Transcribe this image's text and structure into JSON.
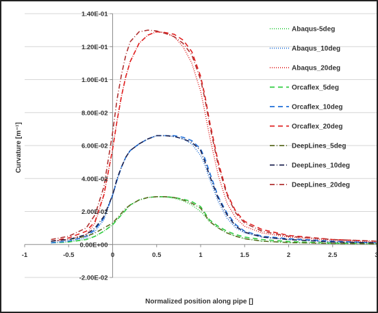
{
  "chart_data": {
    "type": "line",
    "title": "",
    "xlabel": "Normalized position along pipe []",
    "ylabel": "Curvature [m⁻¹]",
    "xlim": [
      -1,
      3
    ],
    "ylim": [
      -0.02,
      0.14
    ],
    "x_ticks": [
      -1,
      -0.5,
      0,
      0.5,
      1,
      1.5,
      2,
      2.5,
      3
    ],
    "x_tick_labels": [
      "-1",
      "-0.5",
      "0",
      "0.5",
      "1",
      "1.5",
      "2",
      "2.5",
      "3"
    ],
    "y_ticks": [
      -0.02,
      0,
      0.02,
      0.04,
      0.06,
      0.08,
      0.1,
      0.12,
      0.14
    ],
    "y_tick_labels": [
      "-2.00E-02",
      "0.00E+00",
      "2.00E-02",
      "4.00E-02",
      "6.00E-02",
      "8.00E-02",
      "1.00E-01",
      "1.20E-01",
      "1.40E-01"
    ],
    "grid": "horizontal",
    "legend_position": "right",
    "x": [
      -0.7,
      -0.5,
      -0.3,
      -0.2,
      -0.1,
      0,
      0.05,
      0.1,
      0.15,
      0.2,
      0.3,
      0.4,
      0.5,
      0.6,
      0.7,
      0.8,
      0.9,
      1.0,
      1.05,
      1.1,
      1.2,
      1.3,
      1.4,
      1.5,
      1.7,
      2.0,
      2.5,
      3.0
    ],
    "series": [
      {
        "name": "Abaqus-5deg",
        "color": "#2ecc40",
        "dash": "1,2",
        "values": [
          0.001,
          0.0015,
          0.003,
          0.005,
          0.008,
          0.012,
          0.015,
          0.018,
          0.021,
          0.024,
          0.027,
          0.0285,
          0.029,
          0.0288,
          0.028,
          0.0265,
          0.024,
          0.02,
          0.017,
          0.014,
          0.01,
          0.007,
          0.005,
          0.0035,
          0.002,
          0.0012,
          0.0006,
          0.0004
        ]
      },
      {
        "name": "Abaqus_10deg",
        "color": "#1f6fd8",
        "dash": "1,2",
        "values": [
          0.001,
          0.002,
          0.004,
          0.008,
          0.015,
          0.03,
          0.039,
          0.047,
          0.053,
          0.057,
          0.061,
          0.064,
          0.066,
          0.066,
          0.0655,
          0.064,
          0.061,
          0.054,
          0.048,
          0.04,
          0.026,
          0.016,
          0.01,
          0.007,
          0.0045,
          0.003,
          0.0015,
          0.001
        ]
      },
      {
        "name": "Abaqus_20deg",
        "color": "#e02020",
        "dash": "1,2",
        "values": [
          0.002,
          0.003,
          0.006,
          0.013,
          0.03,
          0.058,
          0.075,
          0.09,
          0.102,
          0.111,
          0.122,
          0.127,
          0.129,
          0.1285,
          0.126,
          0.12,
          0.11,
          0.093,
          0.08,
          0.066,
          0.042,
          0.025,
          0.016,
          0.011,
          0.007,
          0.0045,
          0.0025,
          0.0015
        ]
      },
      {
        "name": "Orcaflex_5deg",
        "color": "#2ecc40",
        "dash": "7,5",
        "values": [
          0.001,
          0.0015,
          0.003,
          0.005,
          0.008,
          0.012,
          0.015,
          0.018,
          0.021,
          0.024,
          0.027,
          0.0285,
          0.029,
          0.029,
          0.0285,
          0.0275,
          0.026,
          0.023,
          0.019,
          0.015,
          0.011,
          0.008,
          0.006,
          0.0045,
          0.003,
          0.0018,
          0.0008,
          0.0005
        ]
      },
      {
        "name": "Orcaflex_10deg",
        "color": "#1f6fd8",
        "dash": "7,5",
        "values": [
          0.001,
          0.002,
          0.005,
          0.009,
          0.016,
          0.03,
          0.039,
          0.047,
          0.053,
          0.057,
          0.061,
          0.064,
          0.066,
          0.066,
          0.066,
          0.065,
          0.063,
          0.058,
          0.052,
          0.044,
          0.029,
          0.019,
          0.012,
          0.008,
          0.005,
          0.0035,
          0.002,
          0.001
        ]
      },
      {
        "name": "Orcaflex_20deg",
        "color": "#e02020",
        "dash": "7,5",
        "values": [
          0.002,
          0.004,
          0.008,
          0.014,
          0.03,
          0.058,
          0.075,
          0.09,
          0.102,
          0.111,
          0.122,
          0.127,
          0.129,
          0.1285,
          0.1275,
          0.124,
          0.117,
          0.102,
          0.09,
          0.075,
          0.05,
          0.031,
          0.02,
          0.014,
          0.009,
          0.0055,
          0.003,
          0.002
        ]
      },
      {
        "name": "DeepLines_5deg",
        "color": "#5a6b20",
        "dash": "7,3,1,3",
        "values": [
          0.002,
          0.003,
          0.005,
          0.007,
          0.01,
          0.013,
          0.016,
          0.019,
          0.022,
          0.024,
          0.027,
          0.0285,
          0.029,
          0.029,
          0.0285,
          0.027,
          0.025,
          0.022,
          0.018,
          0.014,
          0.01,
          0.007,
          0.005,
          0.0035,
          0.002,
          0.0012,
          0.0006,
          0.0004
        ]
      },
      {
        "name": "DeepLines_10deg",
        "color": "#1a1f4d",
        "dash": "7,3,1,3",
        "values": [
          0.002,
          0.003,
          0.006,
          0.01,
          0.017,
          0.03,
          0.04,
          0.047,
          0.053,
          0.057,
          0.061,
          0.064,
          0.066,
          0.066,
          0.0655,
          0.064,
          0.062,
          0.057,
          0.05,
          0.042,
          0.028,
          0.018,
          0.011,
          0.0075,
          0.0045,
          0.003,
          0.0015,
          0.001
        ]
      },
      {
        "name": "DeepLines_20deg",
        "color": "#b03030",
        "dash": "7,3,1,3",
        "values": [
          0.003,
          0.005,
          0.01,
          0.018,
          0.035,
          0.068,
          0.088,
          0.103,
          0.115,
          0.123,
          0.129,
          0.13,
          0.1295,
          0.128,
          0.126,
          0.122,
          0.115,
          0.1,
          0.088,
          0.073,
          0.048,
          0.03,
          0.019,
          0.013,
          0.008,
          0.005,
          0.003,
          0.002
        ]
      }
    ]
  }
}
